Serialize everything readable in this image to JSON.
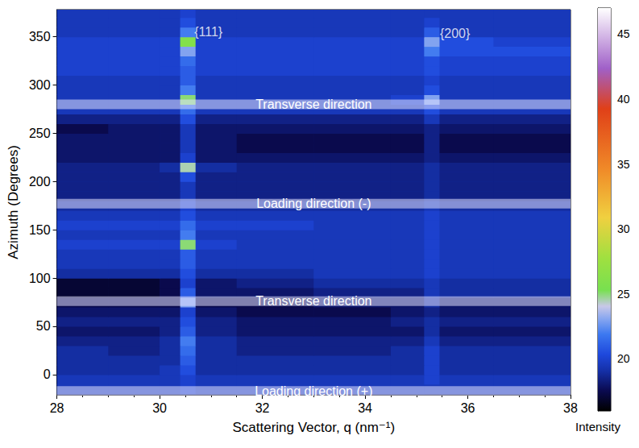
{
  "chart_data": {
    "type": "heatmap",
    "xlabel": "Scattering Vector, q (nm⁻¹)",
    "ylabel": "Azimuth (Degrees)",
    "xlim": [
      28,
      38
    ],
    "xticks": [
      28,
      30,
      32,
      34,
      36,
      38
    ],
    "ylim": [
      -21,
      378
    ],
    "yticks": [
      0,
      50,
      100,
      150,
      200,
      250,
      300,
      350
    ],
    "x_edges": [
      28,
      29,
      30,
      30.4,
      30.7,
      31.5,
      33,
      34.5,
      35.15,
      35.45,
      36.5,
      38
    ],
    "y_edges": [
      -20,
      -10,
      0,
      10,
      20,
      30,
      40,
      50,
      60,
      70,
      80,
      90,
      100,
      110,
      120,
      130,
      140,
      150,
      160,
      170,
      180,
      190,
      200,
      210,
      220,
      230,
      240,
      250,
      260,
      270,
      280,
      290,
      300,
      310,
      320,
      330,
      340,
      350,
      360,
      370,
      380
    ],
    "intensity": [
      [
        19.5,
        19.5,
        19.5,
        20,
        19.5,
        19.5,
        19.5,
        19.5,
        19.5,
        19.5,
        19.5
      ],
      [
        19.5,
        19.5,
        19.5,
        20,
        19.5,
        19.5,
        19.5,
        19.5,
        20,
        19.5,
        19.5
      ],
      [
        19,
        19,
        19.5,
        20.5,
        19,
        19,
        19,
        19,
        20,
        19,
        19
      ],
      [
        19,
        19,
        19,
        21,
        19,
        19,
        19,
        19,
        20,
        19,
        19
      ],
      [
        19,
        18.5,
        19,
        21.5,
        19,
        18.5,
        18.5,
        19,
        20,
        19,
        19
      ],
      [
        18.5,
        18.5,
        19,
        22,
        19,
        18.5,
        18.5,
        18.5,
        19.5,
        18.5,
        18.5
      ],
      [
        18,
        18,
        18.5,
        21,
        18.5,
        18,
        18,
        18,
        19,
        18,
        18
      ],
      [
        18.5,
        18.5,
        18.5,
        20.5,
        18.5,
        18,
        18,
        18.5,
        19,
        18.5,
        18.5
      ],
      [
        18,
        18,
        18,
        20,
        18,
        17.5,
        17.5,
        18,
        18.5,
        18,
        18
      ],
      [
        17.5,
        17.5,
        17.5,
        23,
        17.5,
        17.5,
        18,
        18,
        19,
        18,
        18
      ],
      [
        17,
        17,
        17.5,
        21,
        18,
        18,
        18.5,
        18.5,
        19.5,
        19,
        19
      ],
      [
        17,
        17,
        17.5,
        20,
        18,
        18.5,
        19,
        19,
        19.5,
        19,
        19
      ],
      [
        19,
        19,
        19,
        20.5,
        19,
        19,
        19.5,
        19.5,
        20,
        19.5,
        19.5
      ],
      [
        19.5,
        19.5,
        19.5,
        21,
        19.5,
        19.5,
        19.5,
        19.5,
        20,
        19.5,
        19.5
      ],
      [
        19.5,
        19.5,
        19.5,
        21,
        19.5,
        19.5,
        19.5,
        19.5,
        20,
        19.5,
        19.5
      ],
      [
        20,
        20,
        20,
        25,
        20,
        19.5,
        19.5,
        19.5,
        20,
        19.5,
        19.5
      ],
      [
        19.5,
        19.5,
        19.5,
        22,
        19.5,
        19.5,
        19.5,
        19.5,
        20,
        19.5,
        19.5
      ],
      [
        20,
        20,
        20,
        21.5,
        20,
        20,
        19.5,
        19.5,
        20,
        19.5,
        19.5
      ],
      [
        19.5,
        19.5,
        19.5,
        20.5,
        19.5,
        19.5,
        19.5,
        19.5,
        20,
        19.5,
        19.5
      ],
      [
        19,
        19,
        19,
        20,
        19,
        19,
        19,
        19,
        19.5,
        19,
        19
      ],
      [
        18.5,
        18.5,
        18.5,
        19.5,
        18.5,
        18.5,
        18.5,
        18.5,
        19,
        18.5,
        18.5
      ],
      [
        18.5,
        18.5,
        18.5,
        19.5,
        18.5,
        18.5,
        18.5,
        18.5,
        19,
        18.5,
        18.5
      ],
      [
        18.5,
        18.5,
        18.5,
        20.5,
        18.5,
        18.5,
        18.5,
        18.5,
        19,
        18.5,
        18.5
      ],
      [
        18.5,
        18.5,
        19,
        24.5,
        19,
        18.5,
        18.5,
        18.5,
        19,
        18.5,
        18.5
      ],
      [
        18,
        18,
        18,
        20,
        18,
        18,
        18,
        18,
        18.5,
        18,
        18
      ],
      [
        18,
        18,
        18,
        19.5,
        18,
        17.5,
        17.5,
        17.5,
        18.5,
        17.5,
        17.5
      ],
      [
        18,
        18,
        18,
        19.5,
        18,
        17.5,
        17.5,
        17.5,
        18.5,
        17.5,
        17.5
      ],
      [
        17.5,
        18,
        18,
        19.5,
        18,
        18,
        18,
        18,
        18.5,
        18,
        18
      ],
      [
        18.5,
        18.5,
        18.5,
        20.5,
        18.5,
        18.5,
        18.5,
        18.5,
        19.5,
        18.5,
        18.5
      ],
      [
        19.5,
        19.5,
        19.5,
        21.5,
        19.5,
        19.5,
        19.5,
        19.5,
        20.5,
        19.5,
        19.5
      ],
      [
        19.5,
        19.5,
        19.5,
        25,
        19.5,
        19.5,
        19.5,
        20,
        23,
        19.5,
        19.5
      ],
      [
        19.5,
        19.5,
        19.5,
        22,
        19.5,
        19.5,
        19.5,
        19.5,
        20.5,
        19.5,
        19.5
      ],
      [
        19.5,
        19.5,
        19.5,
        21,
        19.5,
        19.5,
        19.5,
        19.5,
        20,
        19.5,
        19.5
      ],
      [
        20,
        20,
        20,
        21,
        20,
        20,
        20,
        20,
        20.5,
        20,
        20
      ],
      [
        20,
        20,
        20,
        21.5,
        20,
        20,
        20,
        20,
        20.5,
        20,
        20
      ],
      [
        20,
        20,
        20,
        23,
        20,
        20,
        20,
        20,
        22,
        20.5,
        20.5
      ],
      [
        20,
        20,
        20,
        26,
        20,
        20,
        20,
        20,
        23,
        20.5,
        20
      ],
      [
        19.5,
        19.5,
        19.5,
        22,
        19.5,
        19.5,
        19.5,
        19.5,
        21,
        19.5,
        19.5
      ],
      [
        19.5,
        19.5,
        19.5,
        20.5,
        19.5,
        19.5,
        19.5,
        19.5,
        20,
        19.5,
        19.5
      ],
      [
        19.5,
        19.5,
        19.5,
        20,
        19.5,
        19.5,
        19.5,
        19.5,
        19.5,
        19.5,
        19.5
      ]
    ],
    "colorbar": {
      "label": "Intensity",
      "range": [
        16,
        47
      ],
      "ticks": [
        20,
        25,
        30,
        35,
        40,
        45
      ]
    },
    "bands": [
      {
        "text": "Transverse direction",
        "azimuth": 280
      },
      {
        "text": "Loading direction (-)",
        "azimuth": 177
      },
      {
        "text": "Transverse direction",
        "azimuth": 76
      },
      {
        "text": "Loading direction (+)",
        "azimuth": -17
      }
    ],
    "annotations": [
      {
        "text": "{111}",
        "x": 30.95,
        "y": 355
      },
      {
        "text": "{200}",
        "x": 35.75,
        "y": 353
      }
    ]
  }
}
